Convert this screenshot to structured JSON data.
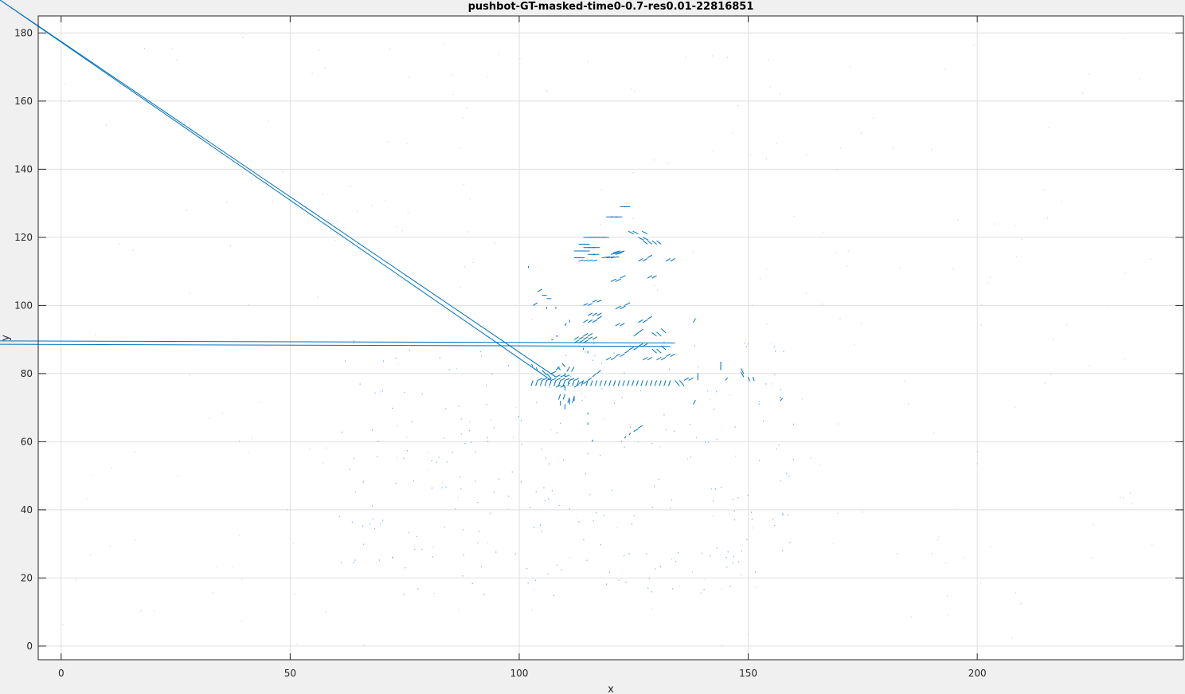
{
  "chart_data": {
    "type": "quiver",
    "title": "pushbot-GT-masked-time0-0.7-res0.01-22816851",
    "xlabel": "x",
    "ylabel": "y",
    "xlim": [
      -5,
      245
    ],
    "ylim": [
      -4,
      185
    ],
    "xticks": [
      0,
      50,
      100,
      150,
      200
    ],
    "yticks": [
      0,
      20,
      40,
      60,
      80,
      100,
      120,
      140,
      160,
      180
    ],
    "grid": true,
    "series_color": "#0072bd",
    "series": [
      {
        "x": [
          122,
          123,
          119,
          120,
          121,
          114,
          115,
          116,
          117,
          118,
          113,
          114,
          114,
          115,
          116,
          112,
          113,
          114,
          115,
          116,
          112,
          113,
          128,
          129,
          130,
          131,
          126,
          127,
          128,
          125,
          126,
          120,
          121,
          122,
          123,
          118,
          119,
          120,
          126,
          127,
          128,
          113,
          114,
          115,
          116,
          120,
          121,
          122,
          128,
          129,
          132,
          133,
          114,
          115,
          116,
          117,
          121,
          122,
          123,
          126,
          127,
          128,
          115,
          116,
          117,
          121,
          122,
          125,
          126,
          130,
          131,
          132,
          114,
          115,
          116,
          117,
          112,
          113,
          114,
          115,
          130,
          131,
          132,
          124,
          125,
          126,
          127,
          114,
          115,
          116,
          112,
          113,
          114,
          119,
          120,
          121,
          122,
          123,
          127,
          128,
          130,
          131,
          132,
          133,
          103,
          104,
          105,
          106,
          107,
          108,
          109,
          110,
          111,
          104,
          105,
          106,
          107,
          108,
          109,
          110,
          111,
          112,
          108,
          109,
          110,
          111,
          109,
          110,
          111,
          112,
          103,
          104,
          105,
          106,
          107,
          108,
          109,
          110,
          111,
          112,
          113,
          114,
          115,
          116,
          117,
          118,
          119,
          120,
          121,
          122,
          123,
          124,
          125,
          126,
          127,
          128,
          129,
          130,
          131,
          132,
          133,
          134,
          135,
          136,
          137,
          112,
          113,
          114,
          115,
          116,
          117,
          108,
          109,
          110,
          111,
          112,
          109,
          110,
          111,
          112,
          144,
          144,
          149,
          149,
          150,
          151,
          110,
          110,
          139,
          139,
          138,
          138,
          145,
          157,
          103,
          104,
          105,
          106,
          107,
          108,
          110,
          111,
          114,
          115,
          102,
          106,
          108,
          115,
          115,
          116,
          123,
          124,
          125,
          126,
          133,
          134,
          107,
          108
        ],
        "y": [
          129,
          129,
          126,
          126,
          126,
          120,
          120,
          120,
          120,
          120,
          118,
          118,
          117,
          117,
          117,
          116,
          116,
          116,
          115,
          115,
          114,
          114,
          118,
          118,
          118,
          118,
          120,
          120,
          121,
          121,
          121,
          115,
          115,
          116,
          116,
          114,
          114,
          114,
          113,
          113,
          114,
          113,
          113,
          113,
          113,
          107,
          107,
          108,
          108,
          108,
          113,
          113,
          100,
          100,
          101,
          101,
          99,
          99,
          100,
          95,
          95,
          96,
          97,
          97,
          97,
          94,
          94,
          91,
          92,
          91,
          91,
          92,
          95,
          95,
          95,
          96,
          90,
          90,
          91,
          91,
          86,
          86,
          87,
          87,
          87,
          88,
          88,
          90,
          90,
          90,
          89,
          89,
          89,
          84,
          84,
          85,
          85,
          86,
          84,
          84,
          84,
          84,
          85,
          85,
          82,
          81,
          81,
          80,
          80,
          79,
          79,
          79,
          78,
          78,
          78,
          78,
          78,
          78,
          78,
          78,
          78,
          78,
          76,
          76,
          76,
          77,
          74,
          74,
          73,
          73,
          78,
          78,
          78,
          78,
          78,
          78,
          78,
          78,
          78,
          78,
          78,
          78,
          78,
          78,
          78,
          78,
          78,
          78,
          78,
          78,
          78,
          78,
          78,
          78,
          78,
          78,
          78,
          78,
          78,
          78,
          78,
          78,
          78,
          78,
          78,
          76,
          77,
          77,
          78,
          79,
          80,
          81,
          81,
          82,
          82,
          82,
          72,
          71,
          71,
          72,
          82,
          81,
          80,
          79,
          79,
          79,
          79,
          75,
          79,
          78,
          71,
          95,
          78,
          72,
          100,
          104,
          103,
          102,
          90,
          91,
          94,
          95,
          87,
          86,
          111,
          99,
          99,
          68,
          65,
          60,
          61,
          62,
          63,
          64,
          88,
          89,
          78,
          79
        ],
        "u": [
          1.2,
          1.2,
          1.5,
          1.5,
          1.5,
          1.8,
          1.8,
          1.6,
          1.6,
          1.6,
          1.4,
          1.4,
          1.6,
          1.6,
          1.6,
          1.4,
          1.4,
          1.4,
          1.5,
          1.5,
          1.3,
          1.3,
          -1.0,
          -1.0,
          -1.0,
          -1.0,
          1.2,
          1.2,
          -1.2,
          -1.2,
          -1.2,
          1.5,
          1.5,
          -1.5,
          -1.5,
          1.8,
          1.8,
          1.8,
          1.0,
          1.0,
          1.0,
          1.0,
          1.0,
          1.0,
          1.0,
          1.2,
          1.2,
          1.2,
          1.0,
          1.0,
          1.0,
          1.0,
          1.0,
          1.0,
          1.0,
          1.0,
          1.2,
          1.2,
          1.2,
          1.0,
          1.0,
          1.0,
          1.0,
          1.0,
          1.0,
          1.0,
          1.0,
          1.0,
          1.0,
          -1.0,
          -1.0,
          -1.0,
          1.0,
          1.0,
          1.0,
          1.0,
          1.0,
          1.0,
          1.0,
          1.0,
          -1.0,
          -1.0,
          -1.0,
          1.0,
          1.0,
          1.0,
          1.0,
          1.0,
          1.0,
          1.0,
          1.0,
          1.0,
          1.0,
          1.0,
          1.0,
          1.0,
          1.0,
          1.0,
          1.0,
          1.0,
          1.0,
          1.0,
          1.0,
          1.0,
          -0.3,
          -0.3,
          1.0,
          1.0,
          1.0,
          1.0,
          1.0,
          1.0,
          1.0,
          1.0,
          1.0,
          1.0,
          1.0,
          1.0,
          1.0,
          1.0,
          1.0,
          1.0,
          1.0,
          1.0,
          -0.4,
          -0.4,
          -0.4,
          -0.4,
          -0.4,
          -0.4,
          -0.4,
          -0.4,
          -0.4,
          -0.4,
          -0.4,
          -0.4,
          -0.4,
          -0.4,
          -0.4,
          -0.4,
          -0.4,
          -0.4,
          -0.4,
          -0.4,
          -0.4,
          -0.4,
          -0.4,
          -0.4,
          -0.4,
          -0.4,
          -0.4,
          -0.4,
          -0.4,
          -0.4,
          -0.4,
          -0.4,
          -0.4,
          -0.4,
          -0.4,
          -0.4,
          -0.4,
          1.0,
          1.0,
          1.0,
          1.0,
          1.0,
          1.0,
          0.8,
          0.8,
          0.8,
          0.8,
          0.8,
          -0.6,
          -0.6,
          -0.6,
          -0.6,
          0.0,
          0.0,
          0.0,
          0.0,
          0.0,
          0.0,
          -0.6,
          -0.6,
          0.3,
          0.3,
          0.0,
          0.0,
          0.0,
          0.0,
          0.5,
          0.5,
          0.5,
          0.5,
          1.0,
          1.0,
          1.0,
          1.0,
          0.5,
          0.5,
          0.3,
          0.0,
          0.0,
          0.0,
          0.0,
          0.0,
          0.0,
          0.0,
          0.0,
          0.0,
          0.3,
          0.3,
          1.0,
          1.0
        ],
        "v": [
          0.0,
          0.0,
          0.0,
          0.0,
          0.0,
          0.0,
          0.0,
          0.0,
          0.0,
          0.0,
          0.0,
          0.0,
          0.0,
          0.0,
          0.0,
          0.0,
          0.0,
          0.0,
          0.0,
          0.0,
          0.0,
          0.0,
          1.0,
          1.0,
          1.0,
          1.0,
          -0.8,
          -0.8,
          0.8,
          0.8,
          0.8,
          0.5,
          0.5,
          -0.5,
          -0.5,
          0.3,
          0.3,
          0.3,
          0.8,
          0.8,
          0.8,
          0.4,
          0.4,
          0.4,
          0.4,
          0.8,
          0.8,
          0.8,
          0.8,
          0.8,
          0.8,
          0.8,
          0.6,
          0.6,
          0.6,
          0.6,
          0.8,
          0.8,
          0.8,
          0.8,
          0.8,
          0.8,
          0.8,
          0.8,
          0.8,
          0.8,
          0.8,
          1.0,
          1.0,
          1.0,
          1.2,
          1.2,
          0.8,
          0.8,
          0.8,
          0.8,
          0.8,
          0.8,
          0.8,
          0.8,
          1.2,
          1.2,
          1.2,
          0.8,
          0.8,
          0.8,
          0.8,
          0.8,
          0.8,
          0.8,
          0.8,
          0.8,
          0.8,
          0.8,
          0.8,
          0.8,
          0.8,
          0.8,
          0.8,
          0.8,
          0.8,
          0.8,
          0.8,
          0.8,
          0.8,
          0.8,
          -1.4,
          -1.4,
          0.6,
          0.6,
          0.6,
          0.6,
          0.6,
          0.6,
          0.6,
          0.6,
          0.6,
          0.6,
          0.6,
          0.6,
          0.6,
          0.6,
          0.6,
          0.6,
          0.6,
          0.6,
          -1.6,
          -1.6,
          -1.6,
          -1.6,
          -1.6,
          -1.6,
          -1.6,
          -1.6,
          -1.6,
          -1.6,
          -1.6,
          -1.6,
          -1.6,
          -1.6,
          -1.6,
          -1.6,
          -1.6,
          -1.6,
          -1.6,
          -1.6,
          -1.6,
          -1.6,
          -1.6,
          -1.6,
          -1.6,
          -1.6,
          -1.6,
          -1.6,
          -1.6,
          -1.6,
          -1.6,
          -1.6,
          -1.6,
          -1.6,
          -1.6,
          -1.6,
          -1.6,
          0.8,
          0.8,
          0.8,
          0.8,
          0.8,
          0.8,
          1.0,
          1.0,
          1.0,
          1.0,
          1.0,
          -1.4,
          -1.4,
          -1.4,
          -1.4,
          1.5,
          1.5,
          1.5,
          1.5,
          1.5,
          1.5,
          -1.2,
          -1.2,
          1.2,
          1.2,
          1.2,
          1.2,
          1.2,
          1.2,
          0.8,
          0.8,
          0.8,
          0.8,
          0.0,
          0.0,
          0.0,
          0.0,
          0.8,
          0.8,
          0.6,
          0.6,
          0.6,
          0.6,
          0.6,
          0.6,
          0.6,
          0.6,
          0.6,
          0.6,
          0.8,
          0.8,
          0.6,
          0.6
        ]
      }
    ]
  }
}
